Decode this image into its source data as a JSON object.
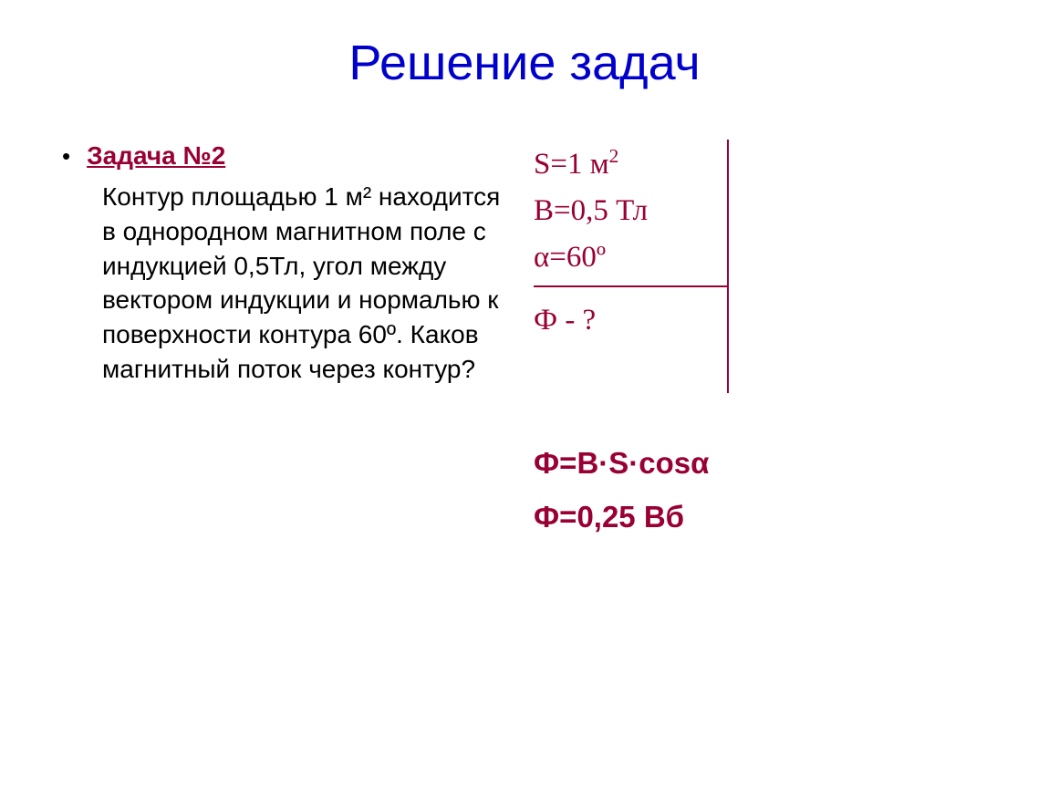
{
  "title": "Решение задач",
  "task_label": "Задача №2",
  "problem_text": "Контур площадью 1 м² находится в однородном магнитном поле с индукцией 0,5Тл, угол между вектором индукции и нормалью к поверхности контура 60º. Каков магнитный поток через контур?",
  "given": {
    "line1_html": "S=1 м<sup>2</sup>",
    "line2": "B=0,5 Тл",
    "line3": "α=60º",
    "unknown": "Ф - ?"
  },
  "formula": "Ф=B·S·cosα",
  "result": "Ф=0,25 Вб",
  "colors": {
    "title": "#0000cc",
    "accent": "#990033",
    "body": "#000000",
    "background": "#ffffff"
  }
}
